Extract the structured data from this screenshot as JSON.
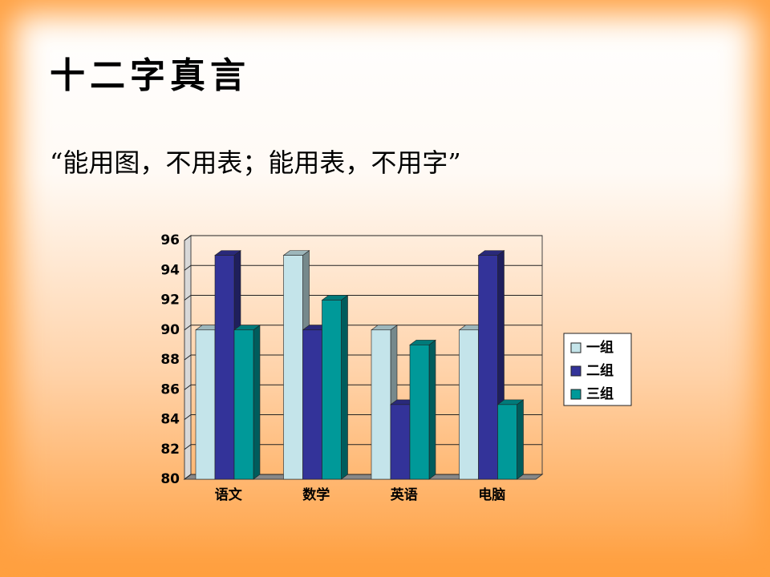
{
  "slide": {
    "title": "十二字真言",
    "quote": "“能用图，不用表；能用表，不用字”"
  },
  "chart_data": {
    "type": "bar3d",
    "categories": [
      "语文",
      "数学",
      "英语",
      "电脑"
    ],
    "series": [
      {
        "name": "一组",
        "color": "#c4e4ea",
        "values": [
          90,
          95,
          90,
          90
        ]
      },
      {
        "name": "二组",
        "color": "#333399",
        "values": [
          95,
          90,
          85,
          95
        ]
      },
      {
        "name": "三组",
        "color": "#009999",
        "values": [
          90,
          92,
          89,
          85
        ]
      }
    ],
    "ylim": [
      80,
      96
    ],
    "yticks": [
      80,
      82,
      84,
      86,
      88,
      90,
      92,
      94,
      96
    ],
    "grid": true,
    "legend": "right"
  }
}
